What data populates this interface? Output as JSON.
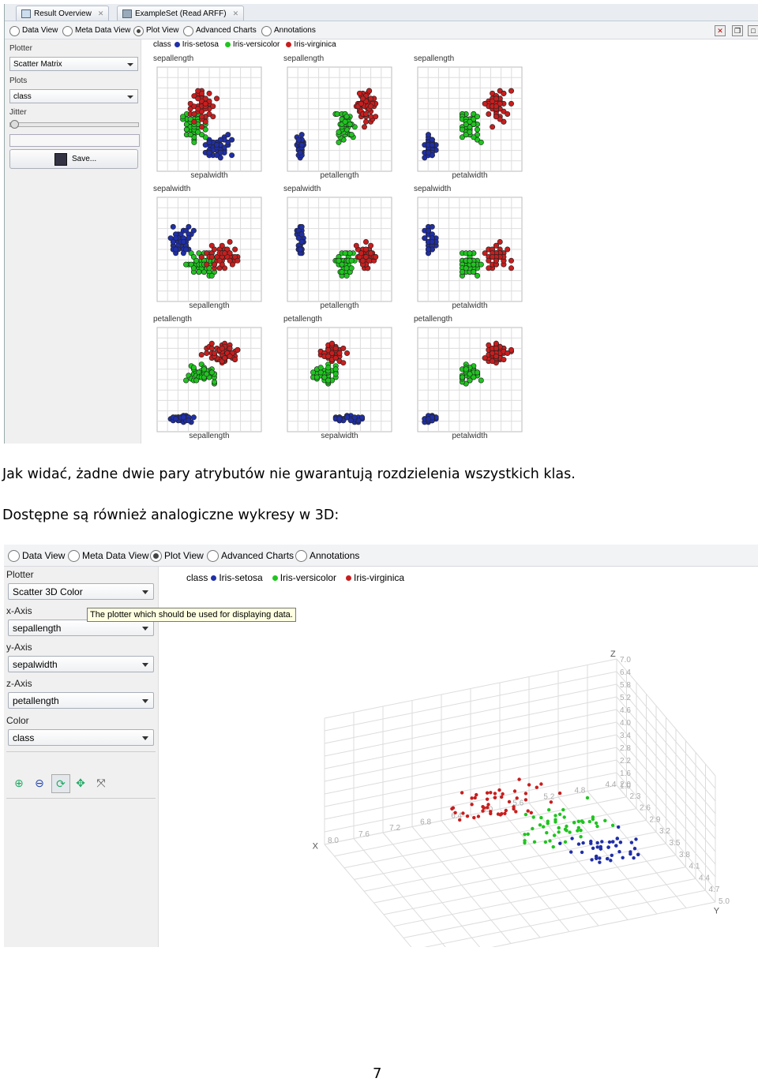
{
  "shot1": {
    "tabs": [
      {
        "label": "Result Overview"
      },
      {
        "label": "ExampleSet (Read ARFF)"
      }
    ],
    "modes": [
      "Data View",
      "Meta Data View",
      "Plot View",
      "Advanced Charts",
      "Annotations"
    ],
    "selected_mode": "Plot View",
    "left_panel": {
      "plotter_label": "Plotter",
      "plotter_value": "Scatter Matrix",
      "plots_label": "Plots",
      "plots_value": "class",
      "jitter_label": "Jitter",
      "save_label": "Save..."
    },
    "legend": {
      "title": "class",
      "items": [
        "Iris-setosa",
        "Iris-versicolor",
        "Iris-virginica"
      ]
    },
    "colors": {
      "setosa": "#1f2fa8",
      "versicolor": "#1fc51f",
      "virginica": "#c81e1e"
    }
  },
  "caption": {
    "line1": "Jak widać, żadne dwie pary atrybutów nie gwarantują rozdzielenia wszystkich klas.",
    "line2": "Dostępne są również analogiczne wykresy w 3D:"
  },
  "shot2": {
    "modes": [
      "Data View",
      "Meta Data View",
      "Plot View",
      "Advanced Charts",
      "Annotations"
    ],
    "selected_mode": "Plot View",
    "left_panel": {
      "plotter_label": "Plotter",
      "plotter_value": "Scatter 3D Color",
      "x_label": "x-Axis",
      "x_value": "sepallength",
      "y_label": "y-Axis",
      "y_value": "sepalwidth",
      "z_label": "z-Axis",
      "z_value": "petallength",
      "color_label": "Color",
      "color_value": "class",
      "tools": [
        "zoom-in-icon",
        "zoom-out-icon",
        "rotate-icon",
        "pan-icon",
        "reset-icon"
      ]
    },
    "tooltip": "The plotter which should be used for displaying data.",
    "legend": {
      "title": "class",
      "items": [
        "Iris-setosa",
        "Iris-versicolor",
        "Iris-virginica"
      ]
    },
    "axis_names": {
      "x": "X",
      "y": "Y",
      "z": "Z"
    },
    "x_ticks": [
      "8.0",
      "7.6",
      "7.2",
      "6.8",
      "6.4",
      "6.0",
      "5.6",
      "5.2",
      "4.8",
      "4.4"
    ],
    "y_ticks": [
      "5.0",
      "4.7",
      "4.4",
      "4.1",
      "3.8",
      "3.5",
      "3.2",
      "2.9",
      "2.6",
      "2.3",
      "2.0"
    ],
    "z_ticks": [
      "7.0",
      "6.4",
      "5.8",
      "5.2",
      "4.6",
      "4.0",
      "3.4",
      "2.8",
      "2.2",
      "1.6",
      "1.0"
    ]
  },
  "page_number": "7",
  "chart_data": [
    {
      "type": "scatter",
      "title": "",
      "variables": [
        "sepallength",
        "sepalwidth",
        "petallength",
        "petalwidth"
      ],
      "grid": true,
      "legend_position": "top",
      "series": [
        {
          "name": "Iris-setosa"
        },
        {
          "name": "Iris-versicolor"
        },
        {
          "name": "Iris-virginica"
        }
      ],
      "panels": [
        {
          "y": "sepallength",
          "x": "sepalwidth"
        },
        {
          "y": "sepallength",
          "x": "petallength"
        },
        {
          "y": "sepallength",
          "x": "petalwidth"
        },
        {
          "y": "sepalwidth",
          "x": "sepallength"
        },
        {
          "y": "sepalwidth",
          "x": "petallength"
        },
        {
          "y": "sepalwidth",
          "x": "petalwidth"
        },
        {
          "y": "petallength",
          "x": "sepallength"
        },
        {
          "y": "petallength",
          "x": "sepalwidth"
        },
        {
          "y": "petallength",
          "x": "petalwidth"
        }
      ]
    },
    {
      "type": "scatter",
      "title": "",
      "xlabel": "X",
      "ylabel": "Y",
      "zlabel": "Z",
      "grid": true,
      "legend_position": "top",
      "series": [
        {
          "name": "Iris-setosa"
        },
        {
          "name": "Iris-versicolor"
        },
        {
          "name": "Iris-virginica"
        }
      ]
    }
  ]
}
